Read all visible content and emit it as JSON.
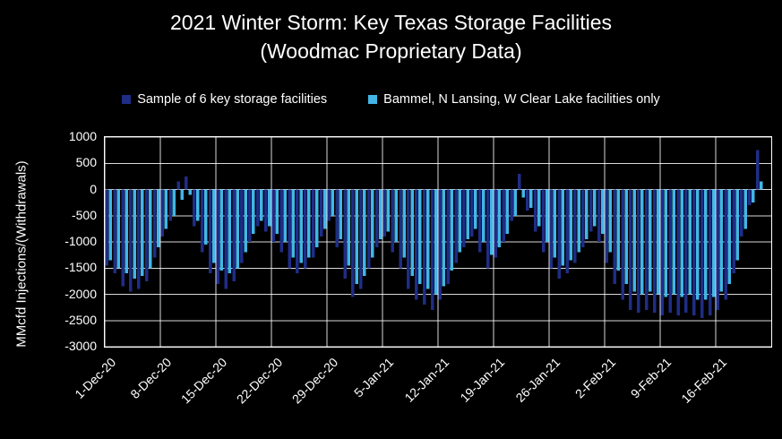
{
  "title": {
    "line1": "2021 Winter Storm: Key Texas Storage Facilities",
    "line2": "(Woodmac Proprietary Data)"
  },
  "legend": [
    {
      "label": "Sample of 6 key storage facilities",
      "color": "#1F2D86"
    },
    {
      "label": "Bammel, N Lansing, W Clear Lake facilities only",
      "color": "#41B6E6"
    }
  ],
  "chart_data": {
    "type": "bar",
    "title": "2021 Winter Storm: Key Texas Storage Facilities (Woodmac Proprietary Data)",
    "xlabel": "",
    "ylabel": "MMcfd  Injections/(Withdrawals)",
    "ylim": [
      -3000,
      1000
    ],
    "yticks": [
      1000,
      500,
      0,
      -500,
      -1000,
      -1500,
      -2000,
      -2500,
      -3000
    ],
    "grid": true,
    "legend_position": "top",
    "background": "#000000",
    "gridline_color": "#FFFFFF",
    "xticklabels": [
      "1-Dec-20",
      "8-Dec-20",
      "15-Dec-20",
      "22-Dec-20",
      "29-Dec-20",
      "5-Jan-21",
      "12-Jan-21",
      "19-Jan-21",
      "26-Jan-21",
      "2-Feb-21",
      "9-Feb-21",
      "16-Feb-21"
    ],
    "xtick_day_indices": [
      0,
      7,
      14,
      21,
      28,
      35,
      42,
      49,
      56,
      63,
      70,
      77
    ],
    "total_day_slots": 84,
    "categories": [
      "1-Dec",
      "2-Dec",
      "3-Dec",
      "4-Dec",
      "5-Dec",
      "6-Dec",
      "7-Dec",
      "8-Dec",
      "9-Dec",
      "10-Dec",
      "11-Dec",
      "12-Dec",
      "13-Dec",
      "14-Dec",
      "15-Dec",
      "16-Dec",
      "17-Dec",
      "18-Dec",
      "19-Dec",
      "20-Dec",
      "21-Dec",
      "22-Dec",
      "23-Dec",
      "24-Dec",
      "25-Dec",
      "26-Dec",
      "27-Dec",
      "28-Dec",
      "29-Dec",
      "30-Dec",
      "31-Dec",
      "1-Jan",
      "2-Jan",
      "3-Jan",
      "4-Jan",
      "5-Jan",
      "6-Jan",
      "7-Jan",
      "8-Jan",
      "9-Jan",
      "10-Jan",
      "11-Jan",
      "12-Jan",
      "13-Jan",
      "14-Jan",
      "15-Jan",
      "16-Jan",
      "17-Jan",
      "18-Jan",
      "19-Jan",
      "20-Jan",
      "21-Jan",
      "22-Jan",
      "23-Jan",
      "24-Jan",
      "25-Jan",
      "26-Jan",
      "27-Jan",
      "28-Jan",
      "29-Jan",
      "30-Jan",
      "31-Jan",
      "1-Feb",
      "2-Feb",
      "3-Feb",
      "4-Feb",
      "5-Feb",
      "6-Feb",
      "7-Feb",
      "8-Feb",
      "9-Feb",
      "10-Feb",
      "11-Feb",
      "12-Feb",
      "13-Feb",
      "14-Feb",
      "15-Feb",
      "16-Feb",
      "17-Feb",
      "18-Feb",
      "19-Feb",
      "20-Feb",
      "21-Feb"
    ],
    "series": [
      {
        "name": "Sample of 6 key storage facilities",
        "color": "#1F2D86",
        "values": [
          -1450,
          -1600,
          -1850,
          -1950,
          -1900,
          -1750,
          -1300,
          -900,
          -600,
          150,
          250,
          -700,
          -1200,
          -1600,
          -1800,
          -1900,
          -1750,
          -1400,
          -1000,
          -700,
          -800,
          -1000,
          -1200,
          -1500,
          -1600,
          -1500,
          -1300,
          -900,
          -600,
          -1100,
          -1700,
          -2050,
          -1900,
          -1500,
          -1100,
          -900,
          -1200,
          -1500,
          -1900,
          -2100,
          -2200,
          -2300,
          -2100,
          -1800,
          -1400,
          -1100,
          -900,
          -1200,
          -1500,
          -1300,
          -1000,
          -600,
          300,
          -400,
          -800,
          -1200,
          -1500,
          -1700,
          -1600,
          -1400,
          -1100,
          -800,
          -1000,
          -1400,
          -1800,
          -2100,
          -2300,
          -2350,
          -2300,
          -2350,
          -2400,
          -2350,
          -2400,
          -2350,
          -2400,
          -2450,
          -2400,
          -2300,
          -2100,
          -1600,
          -900,
          -300,
          750
        ]
      },
      {
        "name": "Bammel, N Lansing, W Clear Lake facilities only",
        "color": "#41B6E6",
        "values": [
          -1350,
          -1500,
          -1600,
          -1700,
          -1650,
          -1500,
          -1100,
          -750,
          -500,
          -200,
          -100,
          -600,
          -1050,
          -1400,
          -1550,
          -1600,
          -1500,
          -1200,
          -850,
          -600,
          -700,
          -850,
          -1000,
          -1300,
          -1400,
          -1300,
          -1100,
          -750,
          -500,
          -950,
          -1450,
          -1800,
          -1650,
          -1300,
          -950,
          -800,
          -1000,
          -1300,
          -1650,
          -1800,
          -1900,
          -2000,
          -1850,
          -1550,
          -1200,
          -950,
          -750,
          -1000,
          -1250,
          -1100,
          -850,
          -500,
          -150,
          -350,
          -700,
          -1000,
          -1300,
          -1450,
          -1350,
          -1200,
          -950,
          -700,
          -850,
          -1200,
          -1550,
          -1800,
          -1950,
          -2000,
          -1950,
          -2000,
          -2050,
          -2000,
          -2050,
          -2000,
          -2100,
          -2100,
          -2050,
          -1950,
          -1800,
          -1350,
          -750,
          -250,
          150
        ]
      }
    ]
  }
}
